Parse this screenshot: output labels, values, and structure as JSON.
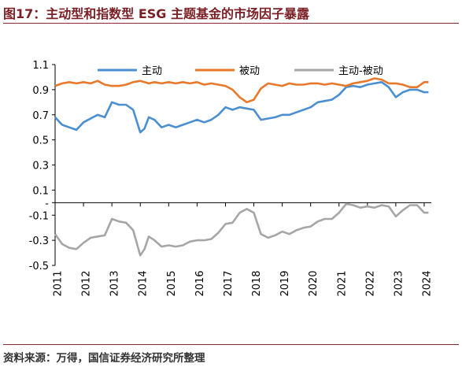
{
  "title": "图17：主动型和指数型 ESG 主题基金的市场因子暴露",
  "source": "资料来源：万得，国信证券经济研究所整理",
  "colors": {
    "title": "#7a1f24",
    "rule": "#8c2a2f",
    "active": "#4a8fd1",
    "passive": "#e8782a",
    "diff": "#a6a6a6",
    "axis": "#000000"
  },
  "chart_data": {
    "type": "line",
    "title": "",
    "xlabel": "",
    "ylabel": "",
    "ylim": [
      -0.5,
      1.1
    ],
    "yticks": [
      -0.5,
      -0.3,
      -0.1,
      0.1,
      0.3,
      0.5,
      0.7,
      0.9,
      1.1
    ],
    "yticklabels": [
      "-0.5",
      "-0.3",
      "-0.1",
      "0.1",
      "0.3",
      "0.5",
      "0.7",
      "0.9",
      "1.1"
    ],
    "zero_label": "-",
    "xlim": [
      2011.0,
      2024.25
    ],
    "xticks": [
      "2011",
      "2012",
      "2013",
      "2014",
      "2015",
      "2016",
      "2017",
      "2018",
      "2019",
      "2020",
      "2021",
      "2022",
      "2023",
      "2024"
    ],
    "grid": false,
    "legend": "top",
    "x": [
      2011.0,
      2011.25,
      2011.5,
      2011.75,
      2012.0,
      2012.25,
      2012.5,
      2012.75,
      2013.0,
      2013.25,
      2013.5,
      2013.75,
      2014.0,
      2014.15,
      2014.3,
      2014.5,
      2014.75,
      2015.0,
      2015.25,
      2015.5,
      2015.75,
      2016.0,
      2016.25,
      2016.5,
      2016.75,
      2017.0,
      2017.25,
      2017.5,
      2017.75,
      2018.0,
      2018.25,
      2018.5,
      2018.75,
      2019.0,
      2019.25,
      2019.5,
      2019.75,
      2020.0,
      2020.25,
      2020.5,
      2020.75,
      2021.0,
      2021.25,
      2021.5,
      2021.75,
      2022.0,
      2022.25,
      2022.5,
      2022.75,
      2023.0,
      2023.25,
      2023.5,
      2023.75,
      2024.0,
      2024.15
    ],
    "series": [
      {
        "name": "主动",
        "color": "#4a8fd1",
        "values": [
          0.68,
          0.62,
          0.6,
          0.58,
          0.64,
          0.67,
          0.7,
          0.68,
          0.8,
          0.78,
          0.78,
          0.74,
          0.56,
          0.59,
          0.68,
          0.66,
          0.6,
          0.62,
          0.6,
          0.62,
          0.64,
          0.66,
          0.64,
          0.66,
          0.7,
          0.76,
          0.74,
          0.76,
          0.75,
          0.74,
          0.66,
          0.67,
          0.68,
          0.7,
          0.7,
          0.72,
          0.74,
          0.76,
          0.8,
          0.81,
          0.82,
          0.86,
          0.92,
          0.93,
          0.92,
          0.94,
          0.95,
          0.96,
          0.92,
          0.84,
          0.88,
          0.9,
          0.9,
          0.88,
          0.88
        ]
      },
      {
        "name": "被动",
        "color": "#e8782a",
        "values": [
          0.93,
          0.95,
          0.96,
          0.95,
          0.96,
          0.95,
          0.97,
          0.94,
          0.93,
          0.93,
          0.94,
          0.96,
          0.97,
          0.96,
          0.95,
          0.96,
          0.95,
          0.96,
          0.95,
          0.96,
          0.95,
          0.96,
          0.94,
          0.95,
          0.94,
          0.93,
          0.9,
          0.84,
          0.8,
          0.82,
          0.91,
          0.95,
          0.94,
          0.93,
          0.95,
          0.94,
          0.94,
          0.95,
          0.95,
          0.94,
          0.95,
          0.94,
          0.93,
          0.95,
          0.96,
          0.97,
          0.99,
          0.98,
          0.95,
          0.95,
          0.94,
          0.92,
          0.92,
          0.96,
          0.96
        ]
      },
      {
        "name": "主动-被动",
        "color": "#a6a6a6",
        "values": [
          -0.25,
          -0.33,
          -0.36,
          -0.37,
          -0.32,
          -0.28,
          -0.27,
          -0.26,
          -0.13,
          -0.15,
          -0.16,
          -0.22,
          -0.42,
          -0.37,
          -0.27,
          -0.3,
          -0.35,
          -0.34,
          -0.35,
          -0.34,
          -0.31,
          -0.3,
          -0.3,
          -0.29,
          -0.24,
          -0.17,
          -0.16,
          -0.08,
          -0.05,
          -0.08,
          -0.25,
          -0.28,
          -0.26,
          -0.23,
          -0.25,
          -0.22,
          -0.2,
          -0.19,
          -0.15,
          -0.13,
          -0.13,
          -0.08,
          -0.01,
          -0.02,
          -0.04,
          -0.03,
          -0.04,
          -0.02,
          -0.03,
          -0.11,
          -0.06,
          -0.02,
          -0.02,
          -0.08,
          -0.08
        ]
      }
    ]
  }
}
